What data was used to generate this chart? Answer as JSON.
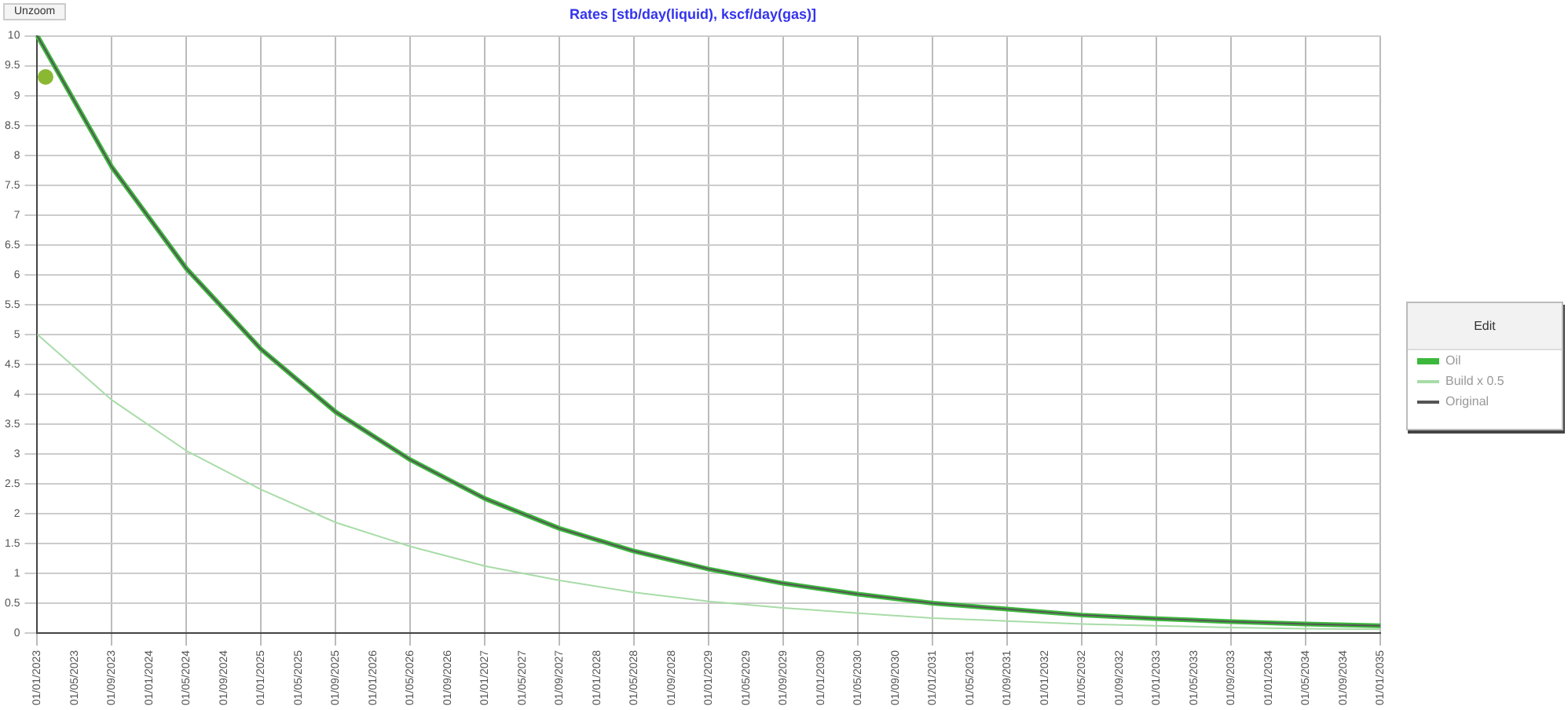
{
  "chart_data": {
    "type": "line",
    "title": "Rates [stb/day(liquid), kscf/day(gas)]",
    "categories": [
      "01/01/2023",
      "01/05/2023",
      "01/09/2023",
      "01/01/2024",
      "01/05/2024",
      "01/09/2024",
      "01/01/2025",
      "01/05/2025",
      "01/09/2025",
      "01/01/2026",
      "01/05/2026",
      "01/09/2026",
      "01/01/2027",
      "01/05/2027",
      "01/09/2027",
      "01/01/2028",
      "01/05/2028",
      "01/09/2028",
      "01/01/2029",
      "01/05/2029",
      "01/09/2029",
      "01/01/2030",
      "01/05/2030",
      "01/09/2030",
      "01/01/2031",
      "01/05/2031",
      "01/09/2031",
      "01/01/2032",
      "01/05/2032",
      "01/09/2032",
      "01/01/2033",
      "01/05/2033",
      "01/09/2033",
      "01/01/2034",
      "01/05/2034",
      "01/09/2034",
      "01/01/2035"
    ],
    "series": [
      {
        "name": "Oil",
        "color": "#3cb83c",
        "values": [
          10,
          null,
          7.8,
          null,
          6.1,
          null,
          4.75,
          null,
          3.7,
          null,
          2.9,
          null,
          2.25,
          null,
          1.75,
          null,
          1.37,
          null,
          1.07,
          null,
          0.83,
          null,
          0.65,
          null,
          0.5,
          null,
          0.4,
          null,
          0.3,
          null,
          0.24,
          null,
          0.19,
          null,
          0.15,
          null,
          0.12
        ]
      },
      {
        "name": "Build x 0.5",
        "color": "#a8dca8",
        "values": [
          5,
          null,
          3.9,
          null,
          3.05,
          null,
          2.4,
          null,
          1.85,
          null,
          1.45,
          null,
          1.12,
          null,
          0.88,
          null,
          0.68,
          null,
          0.53,
          null,
          0.42,
          null,
          0.33,
          null,
          0.25,
          null,
          0.2,
          null,
          0.15,
          null,
          0.12,
          null,
          0.09,
          null,
          0.07,
          null,
          0.06
        ]
      },
      {
        "name": "Original",
        "color": "#555555",
        "values": [
          10,
          null,
          7.8,
          null,
          6.1,
          null,
          4.75,
          null,
          3.7,
          null,
          2.9,
          null,
          2.25,
          null,
          1.75,
          null,
          1.37,
          null,
          1.07,
          null,
          0.83,
          null,
          0.65,
          null,
          0.5,
          null,
          0.4,
          null,
          0.3,
          null,
          0.24,
          null,
          0.19,
          null,
          0.15,
          null,
          0.12
        ]
      }
    ],
    "ylim": [
      0,
      10
    ],
    "yticks": [
      0,
      0.5,
      1,
      1.5,
      2,
      2.5,
      3,
      3.5,
      4,
      4.5,
      5,
      5.5,
      6,
      6.5,
      7,
      7.5,
      8,
      8.5,
      9,
      9.5,
      10
    ],
    "grid": true,
    "legend": "right",
    "legend_title": "Edit",
    "marker": "none",
    "line_style": "solid",
    "annotations": [
      "Unzoom"
    ]
  }
}
